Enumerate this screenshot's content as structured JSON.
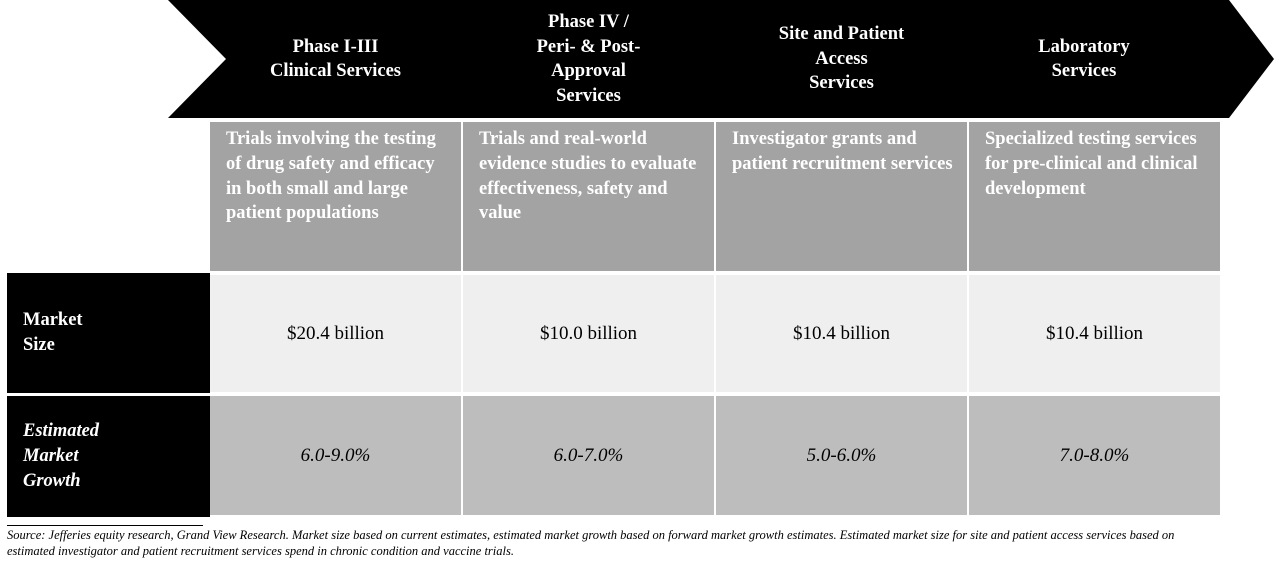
{
  "phases": [
    {
      "title": "Phase I-III\nClinical Services",
      "description": "Trials involving the testing of drug safety and efficacy in both small and large patient populations",
      "market_size": "$20.4 billion",
      "growth": "6.0-9.0%"
    },
    {
      "title": "Phase IV /\nPeri- & Post-\nApproval\nServices",
      "description": "Trials and real-world evidence studies to evaluate effectiveness, safety and value",
      "market_size": "$10.0 billion",
      "growth": "6.0-7.0%"
    },
    {
      "title": "Site and Patient\nAccess\nServices",
      "description": "Investigator grants and patient recruitment services",
      "market_size": "$10.4 billion",
      "growth": "5.0-6.0%"
    },
    {
      "title": "Laboratory\nServices",
      "description": "Specialized testing services for pre-clinical and clinical development",
      "market_size": "$10.4 billion",
      "growth": "7.0-8.0%"
    }
  ],
  "row_labels": {
    "market_size": "Market\nSize",
    "growth": "Estimated\nMarket\nGrowth"
  },
  "source": "Source: Jefferies equity research, Grand View Research. Market size based on current estimates, estimated market growth based on forward market growth estimates. Estimated market size for site and patient access services based on estimated investigator and patient recruitment services spend in chronic condition and vaccine trials.",
  "colors": {
    "arrow": "#000000",
    "description_bg": "#a3a3a3",
    "market_size_bg": "#efefef",
    "growth_bg": "#bdbdbd"
  }
}
